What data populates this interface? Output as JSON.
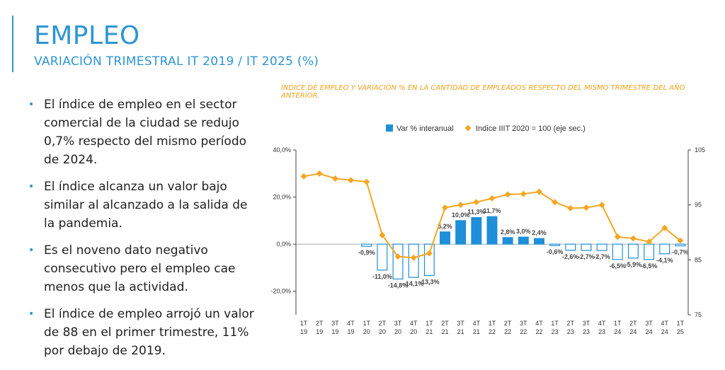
{
  "header": {
    "title": "EMPLEO",
    "subtitle": "VARIACIÓN TRIMESTRAL IT 2019 / IT 2025 (%)"
  },
  "bullets": [
    "El índice de empleo en el sector comercial de la ciudad se redujo 0,7% respecto del mismo período de 2024.",
    "El índice alcanza un valor bajo similar al alcanzado a la salida de la pandemia.",
    "Es el noveno dato negativo consecutivo pero el empleo cae menos que la actividad.",
    "El índice de empleo arrojó un valor de 88 en el primer trimestre, 11% por debajo de 2019."
  ],
  "colors": {
    "accent": "#2e95d3",
    "bar": "#1e8fd8",
    "line": "#f5a623",
    "caption": "#f2a21b"
  },
  "chart_data": {
    "type": "bar",
    "title": "ÍNDICE DE EMPLEO Y VARIACIÓN % EN LA CANTIDAD DE EMPLEADOS RESPECTO DEL MISMO TRIMESTRE DEL AÑO ANTERIOR.",
    "categories": [
      [
        "1T",
        "19"
      ],
      [
        "2T",
        "19"
      ],
      [
        "3T",
        "19"
      ],
      [
        "4T",
        "19"
      ],
      [
        "1T",
        "20"
      ],
      [
        "2T",
        "20"
      ],
      [
        "3T",
        "20"
      ],
      [
        "4T",
        "20"
      ],
      [
        "1T",
        "21"
      ],
      [
        "2T",
        "21"
      ],
      [
        "3T",
        "21"
      ],
      [
        "4T",
        "21"
      ],
      [
        "1T",
        "22"
      ],
      [
        "2T",
        "22"
      ],
      [
        "3T",
        "22"
      ],
      [
        "4T",
        "22"
      ],
      [
        "1T",
        "23"
      ],
      [
        "2T",
        "23"
      ],
      [
        "3T",
        "23"
      ],
      [
        "4T",
        "23"
      ],
      [
        "1T",
        "24"
      ],
      [
        "2T",
        "24"
      ],
      [
        "3T",
        "24"
      ],
      [
        "4T",
        "24"
      ],
      [
        "1T",
        "25"
      ]
    ],
    "series": [
      {
        "name": "Var % interanual",
        "axis": "primary",
        "type": "bar",
        "values": [
          null,
          null,
          null,
          null,
          -0.9,
          -11.0,
          -14.8,
          -14.1,
          -13.3,
          5.2,
          10.0,
          11.3,
          11.7,
          2.8,
          3.0,
          2.4,
          -0.6,
          -2.6,
          -2.7,
          -2.7,
          -6.5,
          -5.9,
          -6.5,
          -4.1,
          -0.7
        ],
        "labels": [
          "",
          "",
          "",
          "",
          "-0,9%",
          "-11,0%",
          "-14,8%",
          "-14,1%",
          "-13,3%",
          "5,2%",
          "10,0%",
          "11,3%",
          "11,7%",
          "2,8%",
          "3,0%",
          "2,4%",
          "-0,6%",
          "-2,6%",
          "-2,7%",
          "-2,7%",
          "-6,5%",
          "-5,9%",
          "-6,5%",
          "-4,1%",
          "-0,7%"
        ],
        "hollow_when_negative": true
      },
      {
        "name": "Indice IIIT 2020 = 100 (eje sec.)",
        "axis": "secondary",
        "type": "line",
        "values": [
          100.2,
          100.7,
          99.8,
          99.5,
          99.2,
          89.5,
          85.6,
          85.4,
          86.2,
          94.5,
          95.0,
          95.5,
          96.2,
          96.9,
          97.0,
          97.4,
          95.5,
          94.4,
          94.5,
          95.0,
          89.2,
          88.9,
          88.3,
          90.8,
          88.5
        ]
      }
    ],
    "ylim": [
      -30,
      40
    ],
    "y_ticks": [
      "40,0%",
      "20,0%",
      "0,0%",
      "-20,0%"
    ],
    "y2lim": [
      75,
      105
    ],
    "y2_ticks": [
      "105",
      "95",
      "85",
      "75"
    ],
    "legend_position": "top"
  }
}
